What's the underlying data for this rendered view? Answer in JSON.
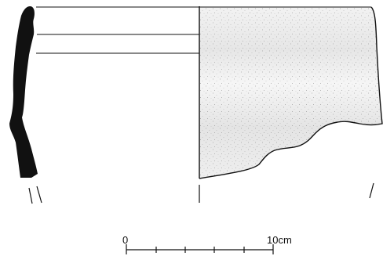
{
  "figure": {
    "description_type": "archaeological pottery rim sherd drawing",
    "scale_bar": {
      "start_label": "0",
      "end_label": "10cm"
    },
    "colors": {
      "ink": "#111111",
      "stipple": "#555555",
      "background": "#ffffff"
    }
  }
}
